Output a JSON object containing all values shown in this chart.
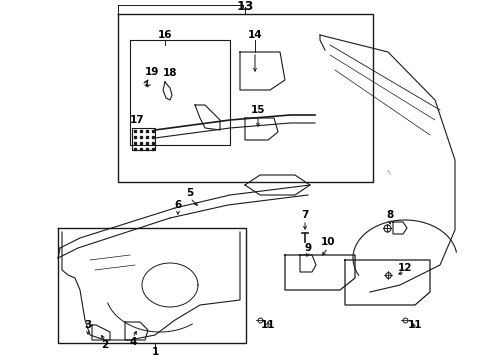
{
  "background_color": "#ffffff",
  "line_color": "#1a1a1a",
  "figsize": [
    4.9,
    3.6
  ],
  "dpi": 100,
  "font_size_labels": 7.5,
  "font_size_13": 9
}
